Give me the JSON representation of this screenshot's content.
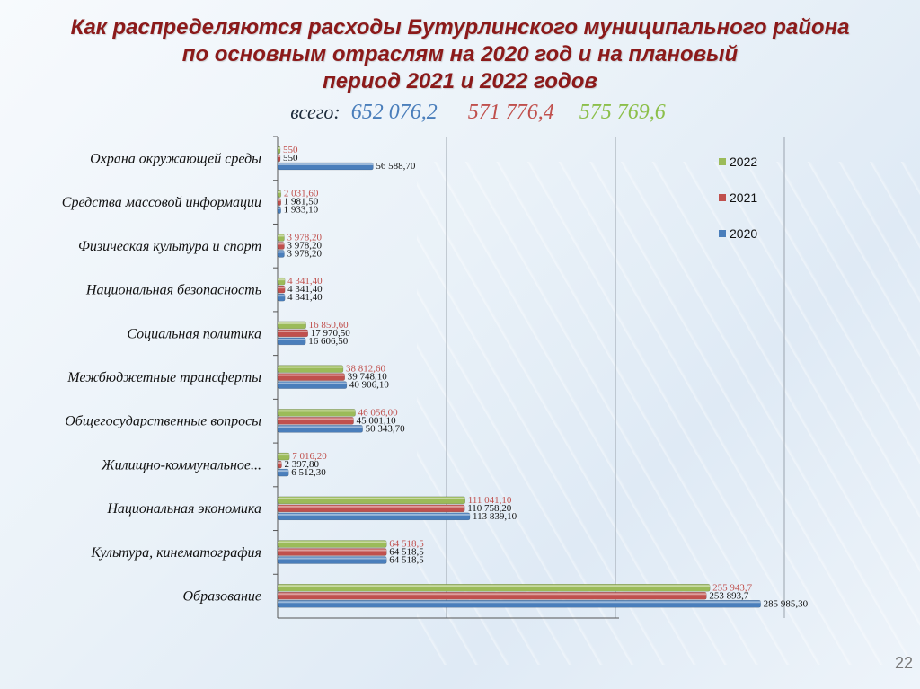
{
  "title": {
    "line1": "Как распределяются расходы Бутурлинского муниципального  района",
    "line2": "по основным отраслям на 2020 год  и на плановый",
    "line3": "период 2021 и 2022 годов"
  },
  "totals": {
    "label": "всего:",
    "y2020": "652 076,2",
    "y2021": "571 776,4",
    "y2022": "575 769,6"
  },
  "page_number": "22",
  "colors": {
    "y2020": "#4a7ebb",
    "y2021": "#c0504d",
    "y2022": "#9bbb59"
  },
  "chart_data": {
    "type": "bar",
    "orientation": "horizontal",
    "grid": true,
    "legend_position": "top-right",
    "categories": [
      "Охрана окружающей среды",
      "Средства массовой информации",
      "Физическая культура и спорт",
      "Национальная безопасность",
      "Социальная политика",
      "Межбюджетные трансферты",
      "Общегосударственные вопросы",
      "Жилищно-коммунальное...",
      "Национальная экономика",
      "Культура, кинематография",
      "Образование"
    ],
    "series": [
      {
        "name": "2022",
        "values": [
          550,
          2031.6,
          3978.2,
          4341.4,
          16850.6,
          38812.6,
          46056.0,
          7016.2,
          111041.1,
          64518.5,
          255943.7
        ],
        "labels": [
          "550",
          "2 031,60",
          "3 978,20",
          "4 341,40",
          "16 850,60",
          "38 812,60",
          "46 056,00",
          "7 016,20",
          "111 041,10",
          "64 518,5",
          "255 943,7"
        ]
      },
      {
        "name": "2021",
        "values": [
          550,
          1981.5,
          3978.2,
          4341.4,
          17970.5,
          39748.1,
          45001.1,
          2397.8,
          110758.2,
          64518.5,
          253893.7
        ],
        "labels": [
          "550",
          "1 981,50",
          "3 978,20",
          "4 341,40",
          "17 970,50",
          "39 748,10",
          "45 001,10",
          "2 397,80",
          "110 758,20",
          "64 518,5",
          "253 893,7"
        ]
      },
      {
        "name": "2020",
        "values": [
          56588.7,
          1933.1,
          3978.2,
          4341.4,
          16606.5,
          40906.1,
          50343.7,
          6512.3,
          113839.1,
          64518.5,
          285985.3
        ],
        "labels": [
          "56 588,70",
          "1 933,10",
          "3 978,20",
          "4 341,40",
          "16 606,50",
          "40 906,10",
          "50 343,70",
          "6 512,30",
          "113 839,10",
          "64 518,5",
          "285 985,30"
        ]
      }
    ],
    "xlim": [
      0,
      300000
    ]
  }
}
